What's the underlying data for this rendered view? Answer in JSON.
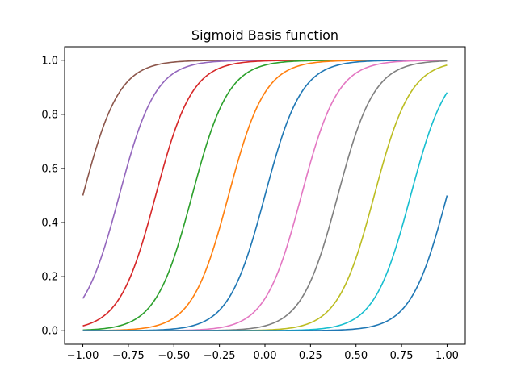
{
  "chart_data": {
    "type": "line",
    "title": "Sigmoid Basis function",
    "xlabel": "",
    "ylabel": "",
    "xlim": [
      -1.1,
      1.1
    ],
    "ylim": [
      -0.05,
      1.05
    ],
    "x_ticks": [
      "−1.00",
      "−0.75",
      "−0.50",
      "−0.25",
      "0.00",
      "0.25",
      "0.50",
      "0.75",
      "1.00"
    ],
    "x_tick_values": [
      -1.0,
      -0.75,
      -0.5,
      -0.25,
      0.0,
      0.25,
      0.5,
      0.75,
      1.0
    ],
    "y_ticks": [
      "0.0",
      "0.2",
      "0.4",
      "0.6",
      "0.8",
      "1.0"
    ],
    "y_tick_values": [
      0.0,
      0.2,
      0.4,
      0.6,
      0.8,
      1.0
    ],
    "grid": false,
    "legend": "none",
    "x_range": [
      -1.0,
      1.0
    ],
    "sigmoid_scale": 0.1,
    "series": [
      {
        "center": -1.0,
        "color": "#8c564b"
      },
      {
        "center": -0.8,
        "color": "#9467bd"
      },
      {
        "center": -0.6,
        "color": "#d62728"
      },
      {
        "center": -0.4,
        "color": "#2ca02c"
      },
      {
        "center": -0.2,
        "color": "#ff7f0e"
      },
      {
        "center": 0.0,
        "color": "#1f77b4"
      },
      {
        "center": 0.2,
        "color": "#e377c2"
      },
      {
        "center": 0.4,
        "color": "#7f7f7f"
      },
      {
        "center": 0.6,
        "color": "#bcbd22"
      },
      {
        "center": 0.8,
        "color": "#17becf"
      },
      {
        "center": 1.0,
        "color": "#1f77b4"
      }
    ]
  }
}
